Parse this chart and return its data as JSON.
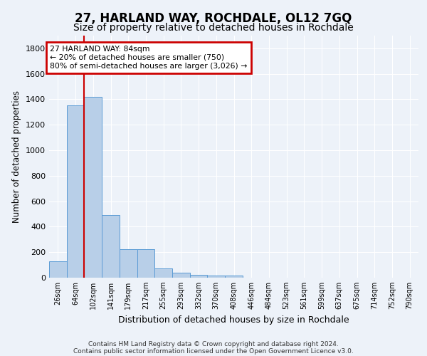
{
  "title": "27, HARLAND WAY, ROCHDALE, OL12 7GQ",
  "subtitle": "Size of property relative to detached houses in Rochdale",
  "xlabel": "Distribution of detached houses by size in Rochdale",
  "ylabel": "Number of detached properties",
  "footer_line1": "Contains HM Land Registry data © Crown copyright and database right 2024.",
  "footer_line2": "Contains public sector information licensed under the Open Government Licence v3.0.",
  "bar_labels": [
    "26sqm",
    "64sqm",
    "102sqm",
    "141sqm",
    "179sqm",
    "217sqm",
    "255sqm",
    "293sqm",
    "332sqm",
    "370sqm",
    "408sqm",
    "446sqm",
    "484sqm",
    "523sqm",
    "561sqm",
    "599sqm",
    "637sqm",
    "675sqm",
    "714sqm",
    "752sqm",
    "790sqm"
  ],
  "bar_values": [
    130,
    1350,
    1420,
    490,
    225,
    225,
    75,
    40,
    25,
    15,
    15,
    0,
    0,
    0,
    0,
    0,
    0,
    0,
    0,
    0,
    0
  ],
  "bar_color": "#b8cfe8",
  "bar_edge_color": "#5b9bd5",
  "vline_x": 1.5,
  "vline_color": "#cc0000",
  "property_line_label": "27 HARLAND WAY: 84sqm",
  "annotation_line1": "← 20% of detached houses are smaller (750)",
  "annotation_line2": "80% of semi-detached houses are larger (3,026) →",
  "annotation_box_color": "#ffffff",
  "annotation_box_edge": "#cc0000",
  "ylim": [
    0,
    1900
  ],
  "yticks": [
    0,
    200,
    400,
    600,
    800,
    1000,
    1200,
    1400,
    1600,
    1800
  ],
  "background_color": "#edf2f9",
  "grid_color": "#ffffff",
  "title_fontsize": 12,
  "subtitle_fontsize": 10
}
